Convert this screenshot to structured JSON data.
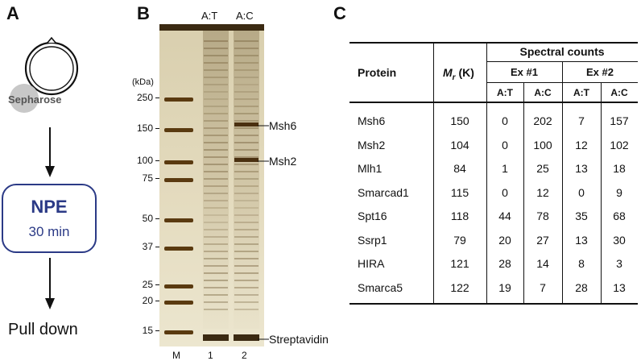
{
  "panels": {
    "a": {
      "letter": "A",
      "bead_label": "Sepharose",
      "box_title": "NPE",
      "box_subtitle": "30 min",
      "bottom_label": "Pull down"
    },
    "b": {
      "letter": "B",
      "lane_headers": [
        "A:T",
        "A:C"
      ],
      "unit_label": "(kDa)",
      "mw_markers": [
        "250",
        "150",
        "100",
        "75",
        "50",
        "37",
        "25",
        "20",
        "15"
      ],
      "band_labels": [
        "Msh6",
        "Msh2",
        "Streptavidin"
      ],
      "lane_labels": [
        "M",
        "1",
        "2"
      ]
    },
    "c": {
      "letter": "C",
      "header": {
        "protein": "Protein",
        "mr_main": "M",
        "mr_sub": "r",
        "mr_unit": " (K)",
        "spectral_counts": "Spectral counts",
        "ex1": "Ex #1",
        "ex2": "Ex #2",
        "cols": [
          "A:T",
          "A:C",
          "A:T",
          "A:C"
        ]
      },
      "rows": [
        {
          "protein": "Msh6",
          "mr": "150",
          "ex1_at": "0",
          "ex1_ac": "202",
          "ex2_at": "7",
          "ex2_ac": "157"
        },
        {
          "protein": "Msh2",
          "mr": "104",
          "ex1_at": "0",
          "ex1_ac": "100",
          "ex2_at": "12",
          "ex2_ac": "102"
        },
        {
          "protein": "Mlh1",
          "mr": "84",
          "ex1_at": "1",
          "ex1_ac": "25",
          "ex2_at": "13",
          "ex2_ac": "18"
        },
        {
          "protein": "Smarcad1",
          "mr": "115",
          "ex1_at": "0",
          "ex1_ac": "12",
          "ex2_at": "0",
          "ex2_ac": "9"
        },
        {
          "protein": "Spt16",
          "mr": "118",
          "ex1_at": "44",
          "ex1_ac": "78",
          "ex2_at": "35",
          "ex2_ac": "68"
        },
        {
          "protein": "Ssrp1",
          "mr": "79",
          "ex1_at": "20",
          "ex1_ac": "27",
          "ex2_at": "13",
          "ex2_ac": "30"
        },
        {
          "protein": "HIRA",
          "mr": "121",
          "ex1_at": "28",
          "ex1_ac": "14",
          "ex2_at": "8",
          "ex2_ac": "3"
        },
        {
          "protein": "Smarca5",
          "mr": "122",
          "ex1_at": "19",
          "ex1_ac": "7",
          "ex2_at": "28",
          "ex2_ac": "13"
        }
      ]
    }
  },
  "colors": {
    "npe_blue": "#2b3a86",
    "linker_orange": "#e8a23a",
    "bead_gray": "#c8c8c8",
    "gel_background": "#d8c9a0",
    "gel_band": "#5a3a10"
  }
}
